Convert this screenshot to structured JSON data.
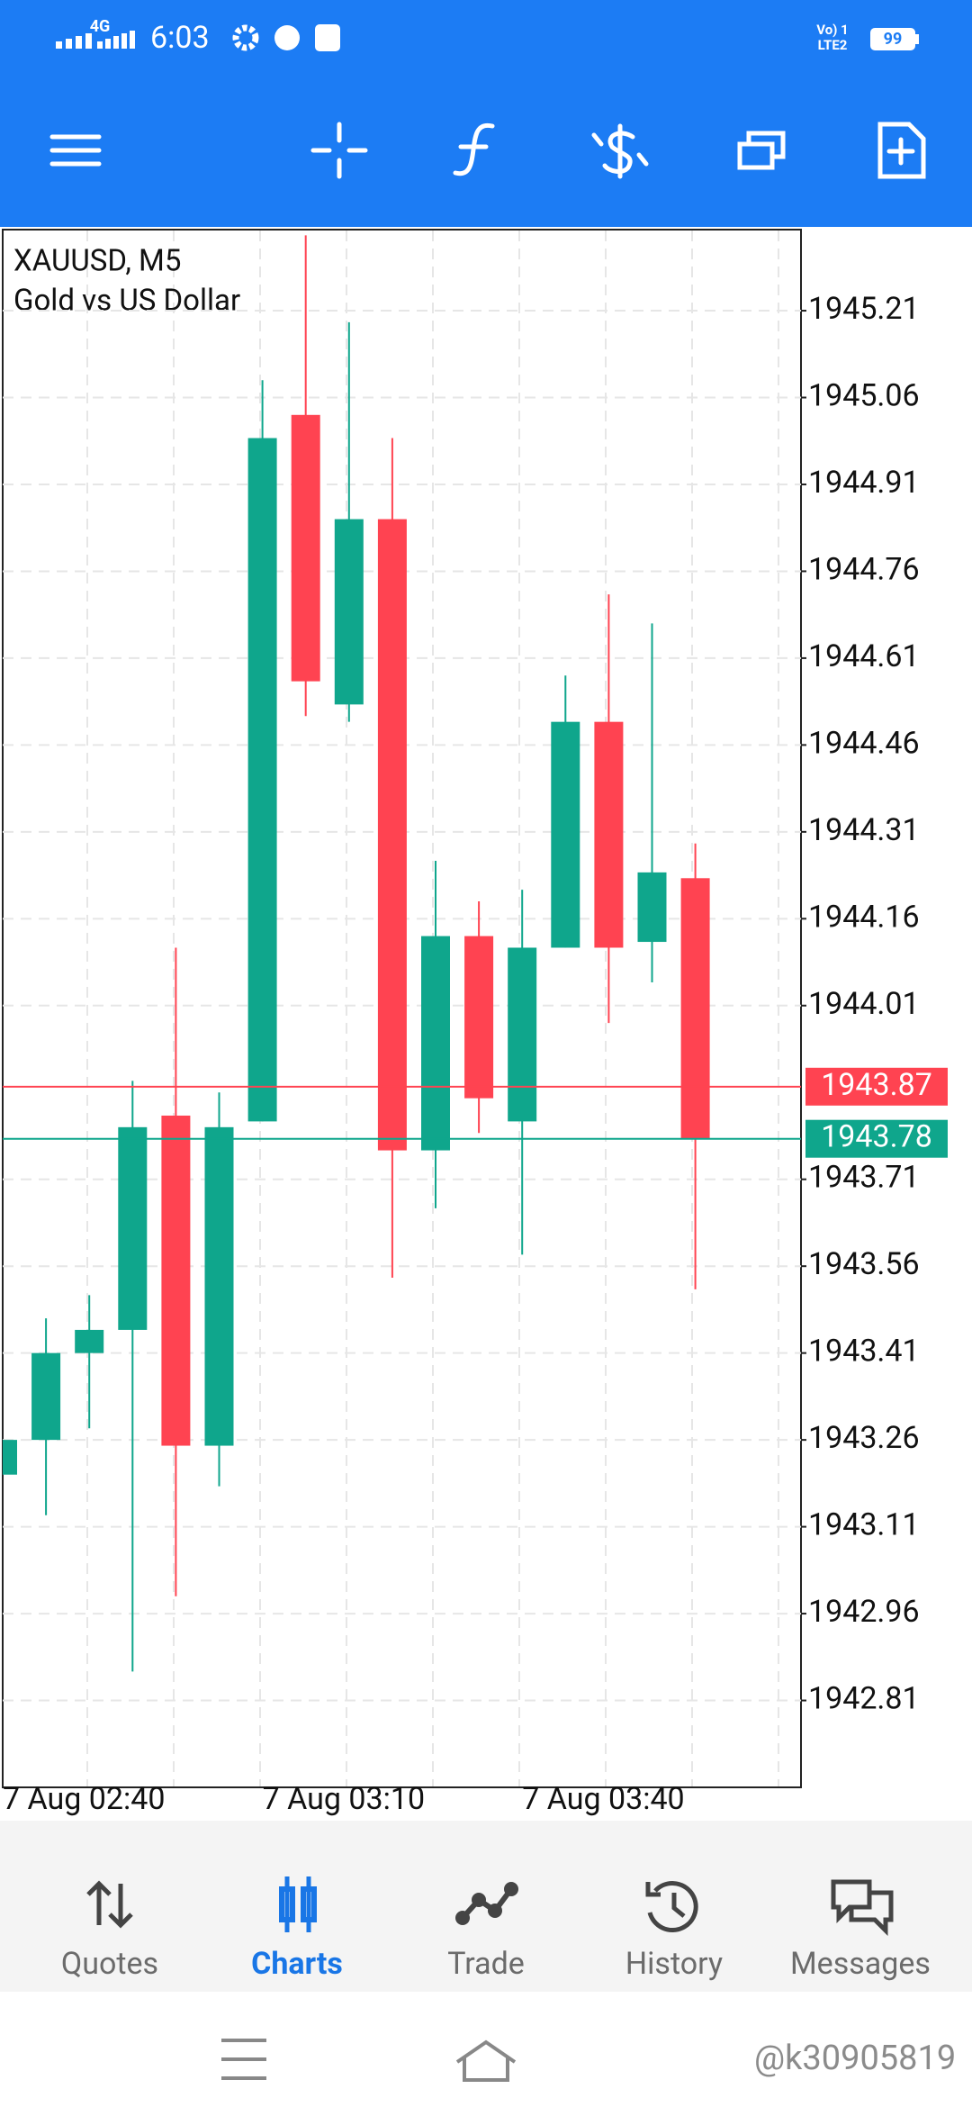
{
  "status": {
    "network": "4G",
    "time": "6:03",
    "volte": "Vo) 1",
    "sim": "LTE2",
    "battery": "99"
  },
  "chart_data": {
    "type": "candlestick",
    "title": "XAUUSD, M5",
    "subtitle": "Gold vs US Dollar",
    "categories": [
      "7 Aug 02:40",
      null,
      null,
      null,
      null,
      null,
      "7 Aug 03:10",
      null,
      null,
      null,
      null,
      null,
      "7 Aug 03:40",
      null,
      null,
      null,
      null
    ],
    "open": [
      1943.2,
      1943.26,
      1943.41,
      1943.45,
      1943.82,
      1943.25,
      1943.81,
      1945.03,
      1944.53,
      1944.85,
      1943.76,
      1944.13,
      1943.81,
      1944.11,
      1944.5,
      1944.12,
      1944.23
    ],
    "high": [
      1943.26,
      1943.47,
      1943.51,
      1943.88,
      1944.11,
      1943.86,
      1945.09,
      1945.34,
      1945.19,
      1944.99,
      1944.26,
      1944.19,
      1944.21,
      1944.58,
      1944.72,
      1944.67,
      1944.29
    ],
    "low": [
      1943.2,
      1943.13,
      1943.28,
      1942.86,
      1942.99,
      1943.18,
      1943.81,
      1944.51,
      1944.5,
      1943.54,
      1943.66,
      1943.79,
      1943.58,
      1944.11,
      1943.98,
      1944.05,
      1943.52
    ],
    "close": [
      1943.26,
      1943.41,
      1943.45,
      1943.8,
      1943.25,
      1943.8,
      1944.99,
      1944.57,
      1944.85,
      1943.76,
      1944.13,
      1943.85,
      1944.11,
      1944.5,
      1944.11,
      1944.24,
      1943.78
    ],
    "up_color": "#0fa68c",
    "down_color": "#ff4351",
    "ask": 1943.87,
    "ask_color": "#ff4351",
    "bid": 1943.78,
    "bid_color": "#0fa68c",
    "ylim": [
      1942.66,
      1945.35
    ],
    "yticks": [
      1945.21,
      1945.06,
      1944.91,
      1944.76,
      1944.61,
      1944.46,
      1944.31,
      1944.16,
      1944.01,
      1943.71,
      1943.56,
      1943.41,
      1943.26,
      1943.11,
      1942.96,
      1942.81
    ],
    "grid": true
  },
  "nav": {
    "items": [
      "Quotes",
      "Charts",
      "Trade",
      "History",
      "Messages"
    ]
  },
  "watermark": "@k30905819"
}
